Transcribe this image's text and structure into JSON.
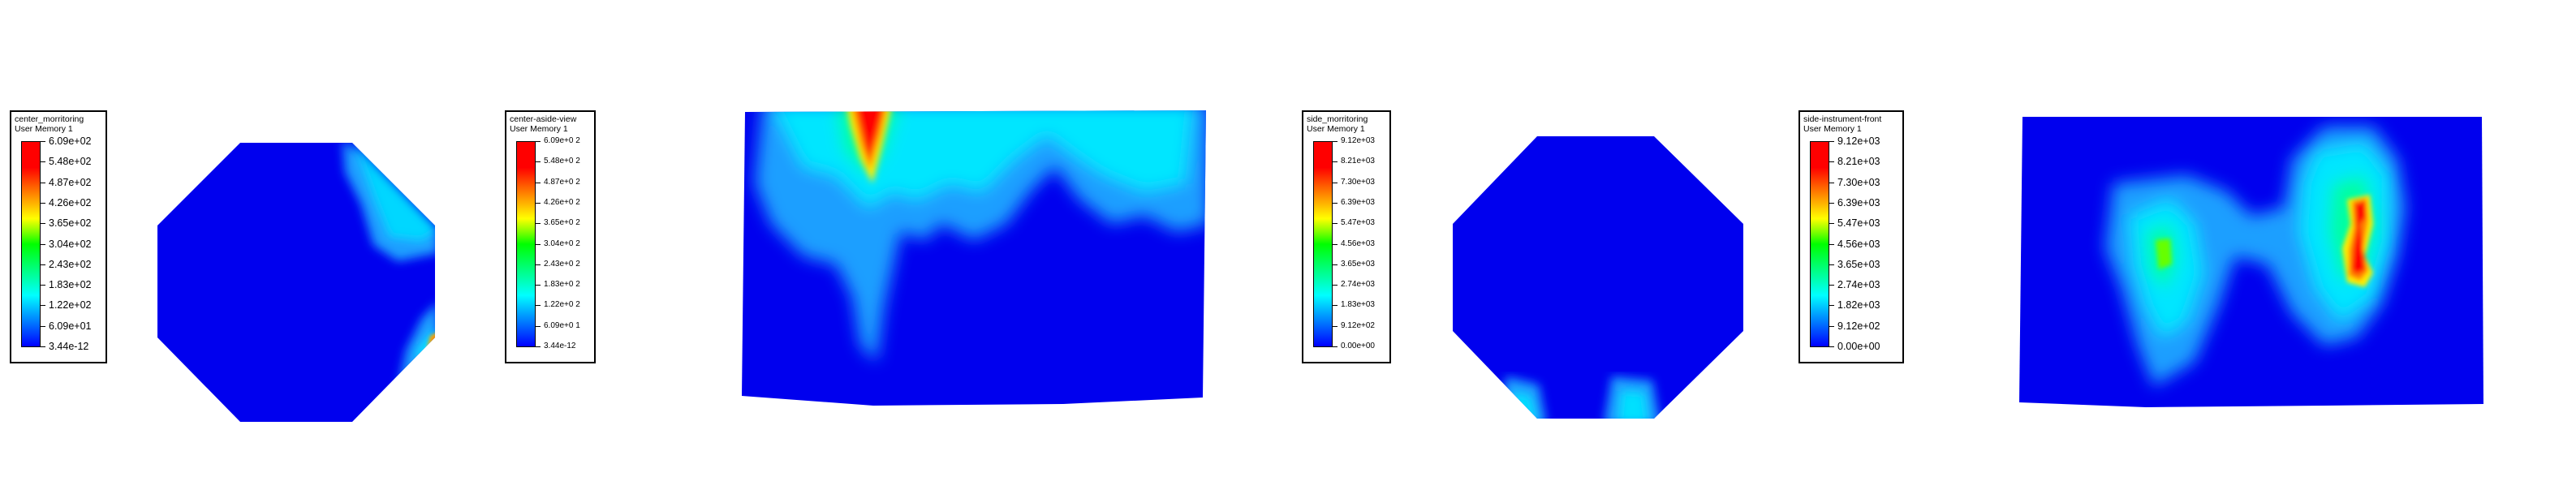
{
  "legends": [
    {
      "title": "center_morritoring",
      "subtitle": "User Memory 1",
      "labels": [
        "6.09e+02",
        "5.48e+02",
        "4.87e+02",
        "4.26e+02",
        "3.65e+02",
        "3.04e+02",
        "2.43e+02",
        "1.83e+02",
        "1.22e+02",
        "6.09e+01",
        "3.44e-12"
      ]
    },
    {
      "title": "center-aside-view",
      "subtitle": "User Memory 1",
      "labels": [
        "6.09e+0 2",
        "5.48e+0 2",
        "4.87e+0 2",
        "4.26e+0 2",
        "3.65e+0 2",
        "3.04e+0 2",
        "2.43e+0 2",
        "1.83e+0 2",
        "1.22e+0 2",
        "6.09e+0 1",
        "3.44e-12"
      ]
    },
    {
      "title": "side_morritoring",
      "subtitle": "User Memory 1",
      "labels": [
        "9.12e+03",
        "8.21e+03",
        "7.30e+03",
        "6.39e+03",
        "5.47e+03",
        "4.56e+03",
        "3.65e+03",
        "2.74e+03",
        "1.83e+03",
        "9.12e+02",
        "0.00e+00"
      ]
    },
    {
      "title": "side-instrument-front",
      "subtitle": "User Memory 1",
      "labels": [
        "9.12e+03",
        "8.21e+03",
        "7.30e+03",
        "6.39e+03",
        "5.47e+03",
        "4.56e+03",
        "3.65e+03",
        "2.74e+03",
        "1.82e+03",
        "9.12e+02",
        "0.00e+00"
      ]
    }
  ],
  "colormap": {
    "min_color": "#0000ff",
    "max_color": "#ff0000",
    "mid_color": "#00ff00"
  }
}
